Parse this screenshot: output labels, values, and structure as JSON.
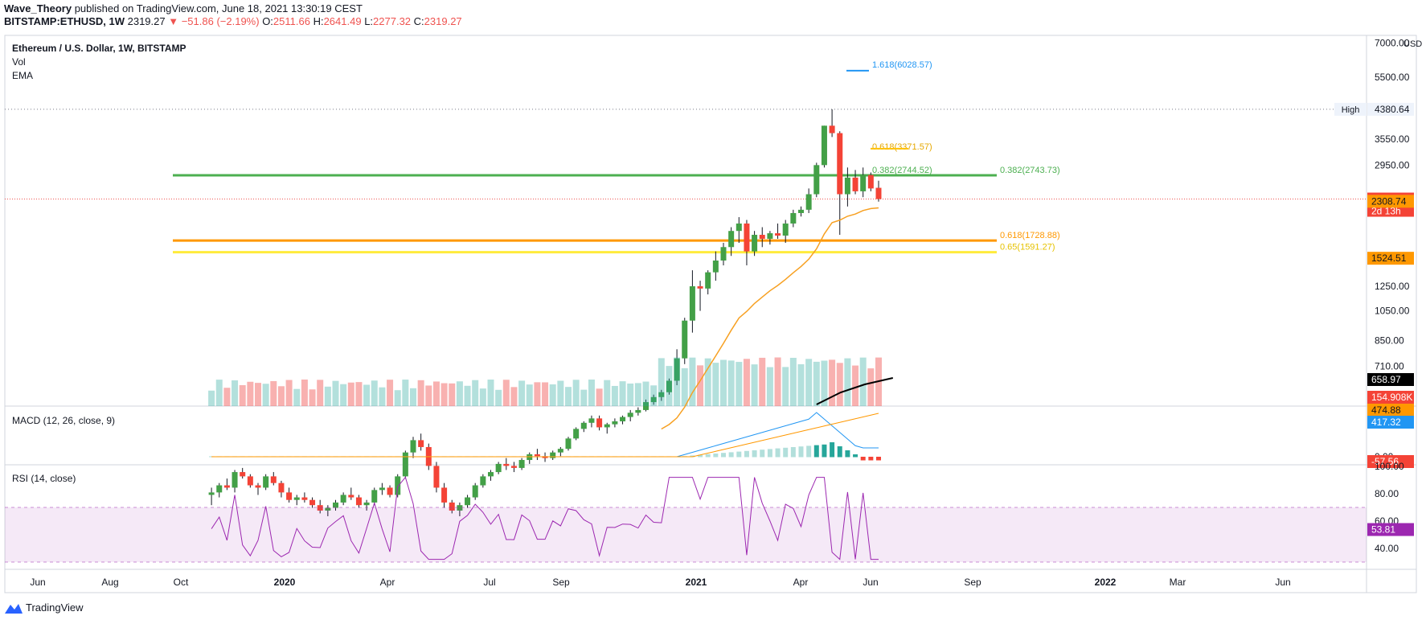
{
  "header": {
    "author": "Wave_Theory",
    "published": "published on TradingView.com, June 18, 2021 13:30:19 CEST",
    "symbol": "BITSTAMP:ETHUSD, 1W",
    "last": "2319.27",
    "change": "▼ −51.86 (−2.19%)",
    "o_label": "O:",
    "o": "2511.66",
    "h_label": "H:",
    "h": "2641.49",
    "l_label": "L:",
    "l": "2277.32",
    "c_label": "C:",
    "c": "2319.27"
  },
  "legend": {
    "title": "Ethereum / U.S. Dollar, 1W, BITSTAMP",
    "vol": "Vol",
    "ema": "EMA"
  },
  "macd_label": "MACD (12, 26, close, 9)",
  "rsi_label": "RSI (14, close)",
  "brand": "TradingView",
  "colors": {
    "up": "#26a69a",
    "down": "#ef5350",
    "candle_up": "#43a047",
    "candle_down": "#f44336",
    "ema": "#f7a021",
    "green_level": "#4caf50",
    "orange_level": "#ff9800",
    "yellow_level": "#ffeb3b",
    "rsi": "#9c27b0",
    "macd": "#2196f3",
    "signal": "#ff9800"
  },
  "chart_data": {
    "type": "candlestick",
    "timeframe": "1W",
    "price_axis": {
      "scale": "log",
      "ticks": [
        "7000.00",
        "5500.00",
        "4380.64",
        "3550.00",
        "2950.00",
        "2319.27",
        "2308.74",
        "1524.51",
        "1250.00",
        "1050.00",
        "850.00",
        "710.00",
        "658.97",
        "154.908K"
      ],
      "currency": "USD"
    },
    "time_axis": [
      "Jun",
      "Aug",
      "Oct",
      "2020",
      "Apr",
      "Jul",
      "Sep",
      "2021",
      "Apr",
      "Jun",
      "Sep",
      "2022",
      "Mar",
      "Jun"
    ],
    "candles": [
      {
        "o": 285,
        "h": 300,
        "l": 265,
        "c": 290
      },
      {
        "o": 290,
        "h": 310,
        "l": 280,
        "c": 305
      },
      {
        "o": 305,
        "h": 320,
        "l": 295,
        "c": 300
      },
      {
        "o": 300,
        "h": 340,
        "l": 290,
        "c": 335
      },
      {
        "o": 335,
        "h": 345,
        "l": 320,
        "c": 325
      },
      {
        "o": 325,
        "h": 330,
        "l": 300,
        "c": 305
      },
      {
        "o": 305,
        "h": 310,
        "l": 285,
        "c": 300
      },
      {
        "o": 300,
        "h": 330,
        "l": 295,
        "c": 325
      },
      {
        "o": 325,
        "h": 335,
        "l": 305,
        "c": 310
      },
      {
        "o": 310,
        "h": 315,
        "l": 280,
        "c": 290
      },
      {
        "o": 290,
        "h": 300,
        "l": 270,
        "c": 275
      },
      {
        "o": 275,
        "h": 285,
        "l": 265,
        "c": 280
      },
      {
        "o": 280,
        "h": 290,
        "l": 270,
        "c": 275
      },
      {
        "o": 275,
        "h": 280,
        "l": 260,
        "c": 265
      },
      {
        "o": 265,
        "h": 275,
        "l": 250,
        "c": 255
      },
      {
        "o": 255,
        "h": 265,
        "l": 245,
        "c": 260
      },
      {
        "o": 260,
        "h": 275,
        "l": 255,
        "c": 270
      },
      {
        "o": 270,
        "h": 290,
        "l": 265,
        "c": 285
      },
      {
        "o": 285,
        "h": 300,
        "l": 275,
        "c": 280
      },
      {
        "o": 280,
        "h": 285,
        "l": 260,
        "c": 265
      },
      {
        "o": 265,
        "h": 275,
        "l": 255,
        "c": 270
      },
      {
        "o": 270,
        "h": 300,
        "l": 265,
        "c": 295
      },
      {
        "o": 295,
        "h": 310,
        "l": 285,
        "c": 300
      },
      {
        "o": 300,
        "h": 305,
        "l": 280,
        "c": 285
      },
      {
        "o": 285,
        "h": 330,
        "l": 280,
        "c": 325
      },
      {
        "o": 325,
        "h": 390,
        "l": 320,
        "c": 385
      },
      {
        "o": 385,
        "h": 430,
        "l": 370,
        "c": 420
      },
      {
        "o": 420,
        "h": 440,
        "l": 390,
        "c": 400
      },
      {
        "o": 400,
        "h": 410,
        "l": 340,
        "c": 350
      },
      {
        "o": 350,
        "h": 360,
        "l": 290,
        "c": 300
      },
      {
        "o": 300,
        "h": 310,
        "l": 260,
        "c": 270
      },
      {
        "o": 270,
        "h": 275,
        "l": 250,
        "c": 255
      },
      {
        "o": 255,
        "h": 270,
        "l": 245,
        "c": 265
      },
      {
        "o": 265,
        "h": 285,
        "l": 260,
        "c": 280
      },
      {
        "o": 280,
        "h": 310,
        "l": 275,
        "c": 305
      },
      {
        "o": 305,
        "h": 330,
        "l": 300,
        "c": 325
      },
      {
        "o": 325,
        "h": 340,
        "l": 315,
        "c": 335
      },
      {
        "o": 335,
        "h": 360,
        "l": 330,
        "c": 355
      },
      {
        "o": 355,
        "h": 370,
        "l": 340,
        "c": 350
      },
      {
        "o": 350,
        "h": 360,
        "l": 335,
        "c": 345
      },
      {
        "o": 345,
        "h": 370,
        "l": 340,
        "c": 365
      },
      {
        "o": 365,
        "h": 385,
        "l": 355,
        "c": 380
      },
      {
        "o": 380,
        "h": 395,
        "l": 365,
        "c": 375
      },
      {
        "o": 375,
        "h": 385,
        "l": 360,
        "c": 370
      },
      {
        "o": 370,
        "h": 390,
        "l": 365,
        "c": 385
      },
      {
        "o": 385,
        "h": 400,
        "l": 375,
        "c": 395
      },
      {
        "o": 395,
        "h": 430,
        "l": 390,
        "c": 425
      },
      {
        "o": 425,
        "h": 460,
        "l": 420,
        "c": 455
      },
      {
        "o": 455,
        "h": 480,
        "l": 445,
        "c": 475
      },
      {
        "o": 475,
        "h": 500,
        "l": 460,
        "c": 490
      },
      {
        "o": 490,
        "h": 500,
        "l": 450,
        "c": 460
      },
      {
        "o": 460,
        "h": 475,
        "l": 440,
        "c": 470
      },
      {
        "o": 470,
        "h": 490,
        "l": 460,
        "c": 480
      },
      {
        "o": 480,
        "h": 500,
        "l": 470,
        "c": 495
      },
      {
        "o": 495,
        "h": 520,
        "l": 480,
        "c": 510
      },
      {
        "o": 510,
        "h": 530,
        "l": 500,
        "c": 520
      },
      {
        "o": 520,
        "h": 560,
        "l": 515,
        "c": 550
      },
      {
        "o": 550,
        "h": 580,
        "l": 540,
        "c": 570
      },
      {
        "o": 570,
        "h": 600,
        "l": 555,
        "c": 590
      },
      {
        "o": 590,
        "h": 650,
        "l": 580,
        "c": 640
      },
      {
        "o": 640,
        "h": 800,
        "l": 620,
        "c": 750
      },
      {
        "o": 750,
        "h": 1000,
        "l": 720,
        "c": 980
      },
      {
        "o": 980,
        "h": 1400,
        "l": 900,
        "c": 1250
      },
      {
        "o": 1250,
        "h": 1300,
        "l": 1050,
        "c": 1230
      },
      {
        "o": 1230,
        "h": 1400,
        "l": 1180,
        "c": 1380
      },
      {
        "o": 1380,
        "h": 1600,
        "l": 1300,
        "c": 1500
      },
      {
        "o": 1500,
        "h": 1700,
        "l": 1450,
        "c": 1650
      },
      {
        "o": 1650,
        "h": 1900,
        "l": 1550,
        "c": 1850
      },
      {
        "o": 1850,
        "h": 2040,
        "l": 1700,
        "c": 1950
      },
      {
        "o": 1950,
        "h": 2000,
        "l": 1450,
        "c": 1600
      },
      {
        "o": 1600,
        "h": 1850,
        "l": 1550,
        "c": 1800
      },
      {
        "o": 1800,
        "h": 1900,
        "l": 1650,
        "c": 1750
      },
      {
        "o": 1750,
        "h": 1850,
        "l": 1680,
        "c": 1820
      },
      {
        "o": 1820,
        "h": 1950,
        "l": 1750,
        "c": 1790
      },
      {
        "o": 1790,
        "h": 2000,
        "l": 1700,
        "c": 1950
      },
      {
        "o": 1950,
        "h": 2150,
        "l": 1900,
        "c": 2100
      },
      {
        "o": 2100,
        "h": 2200,
        "l": 2050,
        "c": 2150
      },
      {
        "o": 2150,
        "h": 2500,
        "l": 2100,
        "c": 2400
      },
      {
        "o": 2400,
        "h": 3000,
        "l": 2350,
        "c": 2950
      },
      {
        "o": 2950,
        "h": 3900,
        "l": 2900,
        "c": 3900
      },
      {
        "o": 3900,
        "h": 4380,
        "l": 3600,
        "c": 3700
      },
      {
        "o": 3700,
        "h": 3750,
        "l": 1800,
        "c": 2400
      },
      {
        "o": 2400,
        "h": 2900,
        "l": 2200,
        "c": 2700
      },
      {
        "o": 2700,
        "h": 2850,
        "l": 2400,
        "c": 2450
      },
      {
        "o": 2450,
        "h": 2900,
        "l": 2350,
        "c": 2750
      },
      {
        "o": 2750,
        "h": 2800,
        "l": 2450,
        "c": 2500
      },
      {
        "o": 2511.66,
        "h": 2641.49,
        "l": 2277.32,
        "c": 2319.27
      }
    ],
    "volume_last": "154.908K",
    "ema_last": 1524.51,
    "volume_ma_last": 658.97,
    "levels": [
      {
        "label": "0.382(2743.73)",
        "value": 2743.73,
        "color": "green"
      },
      {
        "label": "0.618(1728.88)",
        "value": 1728.88,
        "color": "orange"
      },
      {
        "label": "0.65(1591.27)",
        "value": 1591.27,
        "color": "yellow"
      }
    ],
    "fib_labels": [
      {
        "label": "1.618(6028.57)",
        "value": 6028.57
      },
      {
        "label": "0.618(3371.57)",
        "value": 3371.57
      },
      {
        "label": "0.382(2744.52)",
        "value": 2744.52
      }
    ],
    "high_marker": {
      "label": "High",
      "value": "4380.64"
    },
    "last_price": {
      "value": "2319.27",
      "countdown": "2d 13h"
    },
    "prev_close_label": "2308.74",
    "macd": {
      "values_shown": [
        "474.88",
        "417.32",
        "0.00",
        "-57.56"
      ]
    },
    "rsi": {
      "levels": [
        "100.00",
        "80.00",
        "60.00",
        "40.00"
      ],
      "last": "53.81"
    }
  }
}
